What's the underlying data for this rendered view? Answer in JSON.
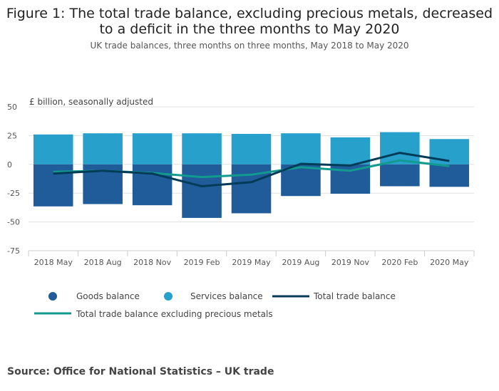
{
  "header": {
    "title": "Figure 1: The total trade balance, excluding precious metals, decreased to a deficit in the three months to May 2020",
    "subtitle": "UK trade balances, three months on three months, May 2018 to May 2020",
    "unit_label": "£ billion, seasonally adjusted"
  },
  "footer": {
    "source": "Source: Office for National Statistics – UK trade"
  },
  "colors": {
    "goods": "#1f5c99",
    "services": "#27a0cc",
    "total": "#003c57",
    "total_ex": "#119b8f",
    "grid": "#e0e0e0"
  },
  "chart_data": {
    "type": "bar",
    "title": "Figure 1: The total trade balance, excluding precious metals, decreased to a deficit in the three months to May 2020",
    "subtitle": "UK trade balances, three months on three months, May 2018 to May 2020",
    "ylabel": "£ billion, seasonally adjusted",
    "ylim": [
      -75,
      50
    ],
    "yticks": [
      50,
      25,
      0,
      -25,
      -50,
      -75
    ],
    "categories": [
      "2018 May",
      "2018 Aug",
      "2018 Nov",
      "2019 Feb",
      "2019 May",
      "2019 Aug",
      "2019 Nov",
      "2020 Feb",
      "2020 May"
    ],
    "stacked": true,
    "grid": true,
    "legend_position": "bottom",
    "series": [
      {
        "name": "Goods balance",
        "kind": "bar",
        "values": [
          -36.5,
          -34.5,
          -35.5,
          -46.5,
          -42.5,
          -27.5,
          -25.5,
          -19.0,
          -19.5
        ]
      },
      {
        "name": "Services balance",
        "kind": "bar",
        "values": [
          26.0,
          27.0,
          27.0,
          27.0,
          26.5,
          27.0,
          23.5,
          28.0,
          22.0
        ]
      },
      {
        "name": "Total trade balance",
        "kind": "line",
        "values": [
          -8.0,
          -5.5,
          -8.0,
          -19.0,
          -15.5,
          0.5,
          -1.0,
          10.0,
          3.0
        ]
      },
      {
        "name": "Total trade balance excluding precious metals",
        "kind": "line",
        "values": [
          -6.5,
          -5.5,
          -7.5,
          -11.0,
          -9.0,
          -2.5,
          -5.5,
          3.5,
          -1.5
        ]
      }
    ]
  }
}
